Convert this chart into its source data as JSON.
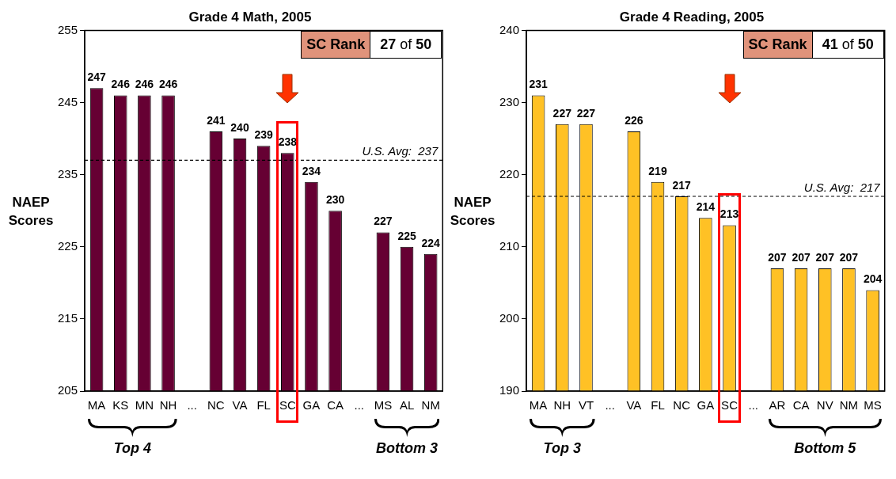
{
  "chart_data": [
    {
      "type": "bar",
      "title": "Grade 4 Math, 2005",
      "ylabel": "NAEP Scores",
      "categories": [
        "MA",
        "KS",
        "MN",
        "NH",
        "...",
        "NC",
        "VA",
        "FL",
        "SC",
        "GA",
        "CA",
        "...",
        "MS",
        "AL",
        "NM"
      ],
      "values": [
        247,
        246,
        246,
        246,
        null,
        241,
        240,
        239,
        238,
        234,
        230,
        null,
        227,
        225,
        224
      ],
      "color": "#660033",
      "ylim": [
        205,
        255
      ],
      "yticks": [
        205,
        215,
        225,
        235,
        245,
        255
      ],
      "grid": false,
      "legend": false,
      "data_labels": true,
      "ref_lines": [
        {
          "axis": "y",
          "value": 237,
          "label": "U.S. Avg:  237",
          "line_style": "dashed",
          "color": "#000000"
        }
      ],
      "annotations": [
        "SC Rank",
        "27 of 50",
        "Top 4",
        "Bottom 3"
      ]
    },
    {
      "type": "bar",
      "title": "Grade 4 Reading, 2005",
      "ylabel": "NAEP Scores",
      "categories": [
        "MA",
        "NH",
        "VT",
        "...",
        "VA",
        "FL",
        "NC",
        "GA",
        "SC",
        "...",
        "AR",
        "CA",
        "NV",
        "NM",
        "MS"
      ],
      "values": [
        231,
        227,
        227,
        null,
        226,
        219,
        217,
        214,
        213,
        null,
        207,
        207,
        207,
        207,
        204
      ],
      "color": "#ffc125",
      "ylim": [
        190,
        240
      ],
      "yticks": [
        190,
        200,
        210,
        220,
        230,
        240
      ],
      "grid": false,
      "legend": false,
      "data_labels": true,
      "ref_lines": [
        {
          "axis": "y",
          "value": 217,
          "label": "U.S. Avg:  217",
          "line_style": "dashed",
          "color": "#000000"
        }
      ],
      "annotations": [
        "SC Rank",
        "41 of 50",
        "Top 3",
        "Bottom 5"
      ]
    }
  ]
}
